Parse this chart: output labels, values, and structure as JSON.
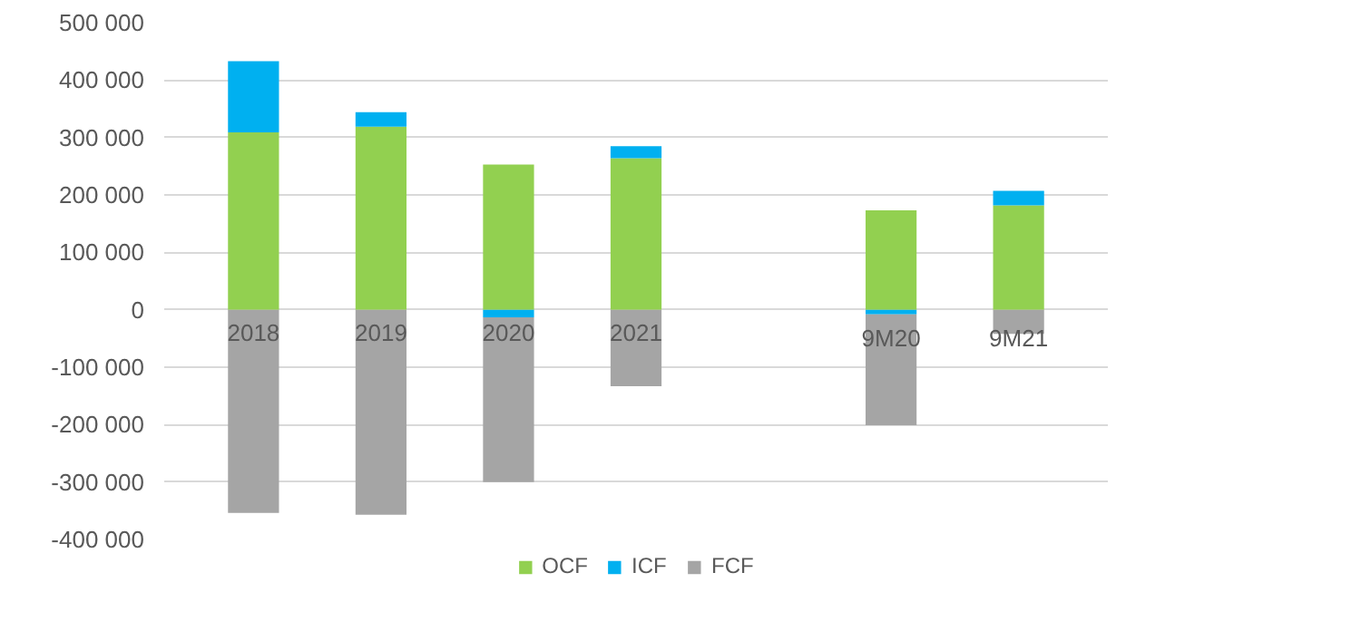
{
  "chart_data": {
    "type": "bar",
    "stacked": true,
    "categories": [
      "2018",
      "2019",
      "2020",
      "2021",
      null,
      "9M20",
      "9M21"
    ],
    "series": [
      {
        "name": "OCF",
        "color": "#92d050",
        "values": [
          309000,
          319000,
          253000,
          264000,
          null,
          173000,
          182000
        ]
      },
      {
        "name": "ICF",
        "color": "#00b0f0",
        "values": [
          124000,
          25000,
          -13000,
          21000,
          null,
          -8000,
          25000
        ]
      },
      {
        "name": "FCF",
        "color": "#a5a5a5",
        "values": [
          -354000,
          -357000,
          -287000,
          -133000,
          null,
          -193000,
          -42000
        ]
      }
    ],
    "ylim": [
      -400000,
      500000
    ],
    "yticks": [
      {
        "value": -400000,
        "label": "-400 000"
      },
      {
        "value": -300000,
        "label": "-300 000"
      },
      {
        "value": -200000,
        "label": "-200 000"
      },
      {
        "value": -100000,
        "label": "-100 000"
      },
      {
        "value": 0,
        "label": "0"
      },
      {
        "value": 100000,
        "label": "100 000"
      },
      {
        "value": 200000,
        "label": "200 000"
      },
      {
        "value": 300000,
        "label": "300 000"
      },
      {
        "value": 400000,
        "label": "400 000"
      },
      {
        "value": 500000,
        "label": "500 000"
      }
    ],
    "grid": "y",
    "legend": "bottom"
  }
}
